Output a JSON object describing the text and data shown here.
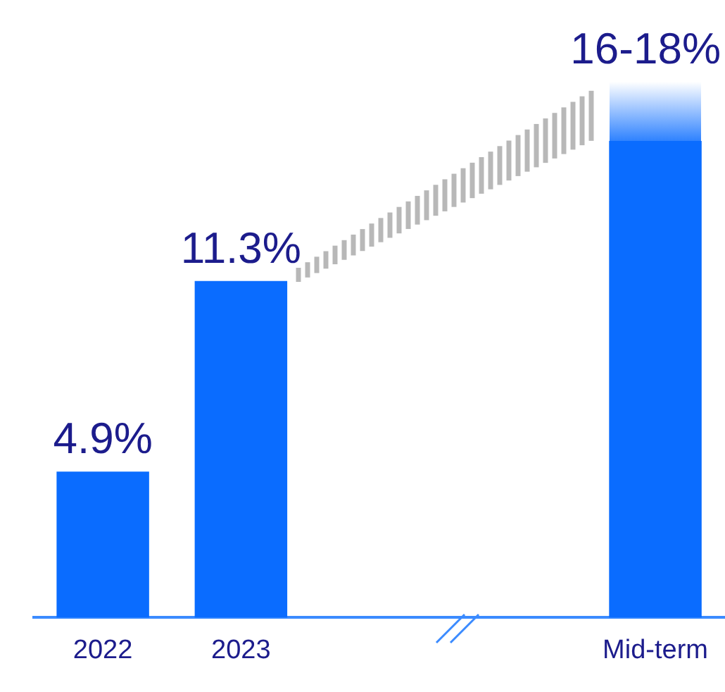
{
  "chart_data": {
    "type": "bar",
    "categories": [
      "2022",
      "2023",
      null,
      null,
      "Mid-term"
    ],
    "values": [
      4.9,
      11.3,
      null,
      null,
      16
    ],
    "value_labels": [
      "4.9%",
      "11.3%",
      null,
      null,
      "16-18%"
    ],
    "color": "#0a6cff",
    "grid": false,
    "legend": false,
    "tick_labels": "x"
  }
}
